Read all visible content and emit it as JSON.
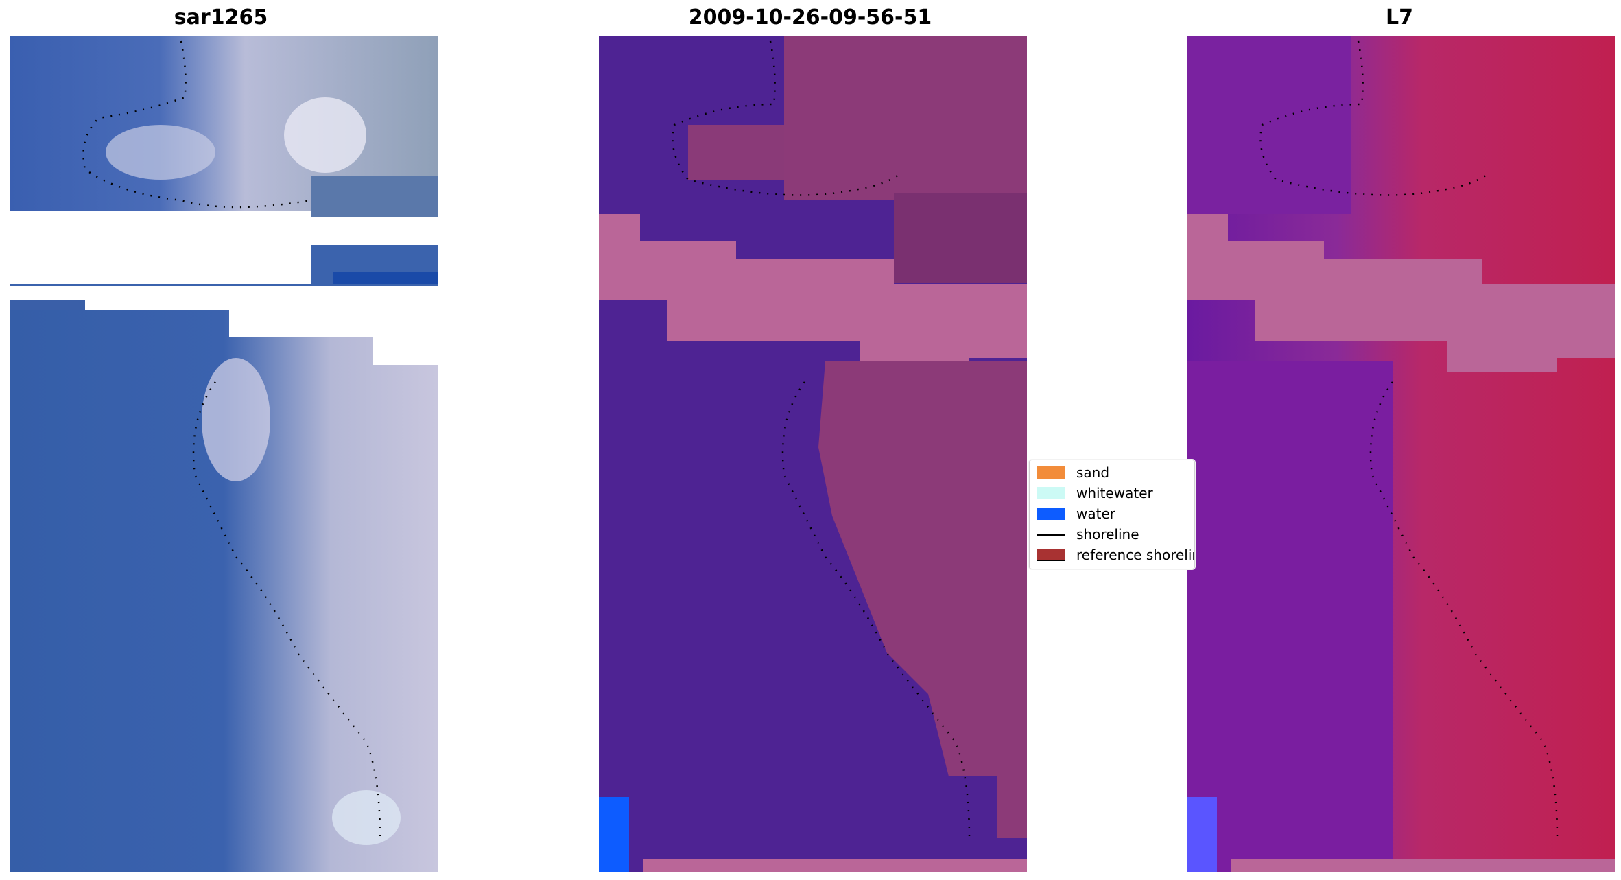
{
  "panels": [
    {
      "title": "sar1265"
    },
    {
      "title": "2009-10-26-09-56-51"
    },
    {
      "title": "L7"
    }
  ],
  "legend": {
    "items": [
      {
        "label": "sand",
        "color": "#f28c3a",
        "kind": "patch"
      },
      {
        "label": "whitewater",
        "color": "#ccfaf5",
        "kind": "patch"
      },
      {
        "label": "water",
        "color": "#0d5cff",
        "kind": "patch"
      },
      {
        "label": "shoreline",
        "color": "#000000",
        "kind": "line"
      },
      {
        "label": "reference shoreline",
        "color": "#a83232",
        "kind": "patch"
      }
    ]
  },
  "colors": {
    "rgb_water": "#3a62b0",
    "rgb_surf": "#c8c8e0",
    "class_water": "#4e2393",
    "class_land": "#8c3a78",
    "nodata_pink": "#ba6698",
    "ndwi_water": "#6a1aa0",
    "ndwi_land": "#c0285a"
  }
}
